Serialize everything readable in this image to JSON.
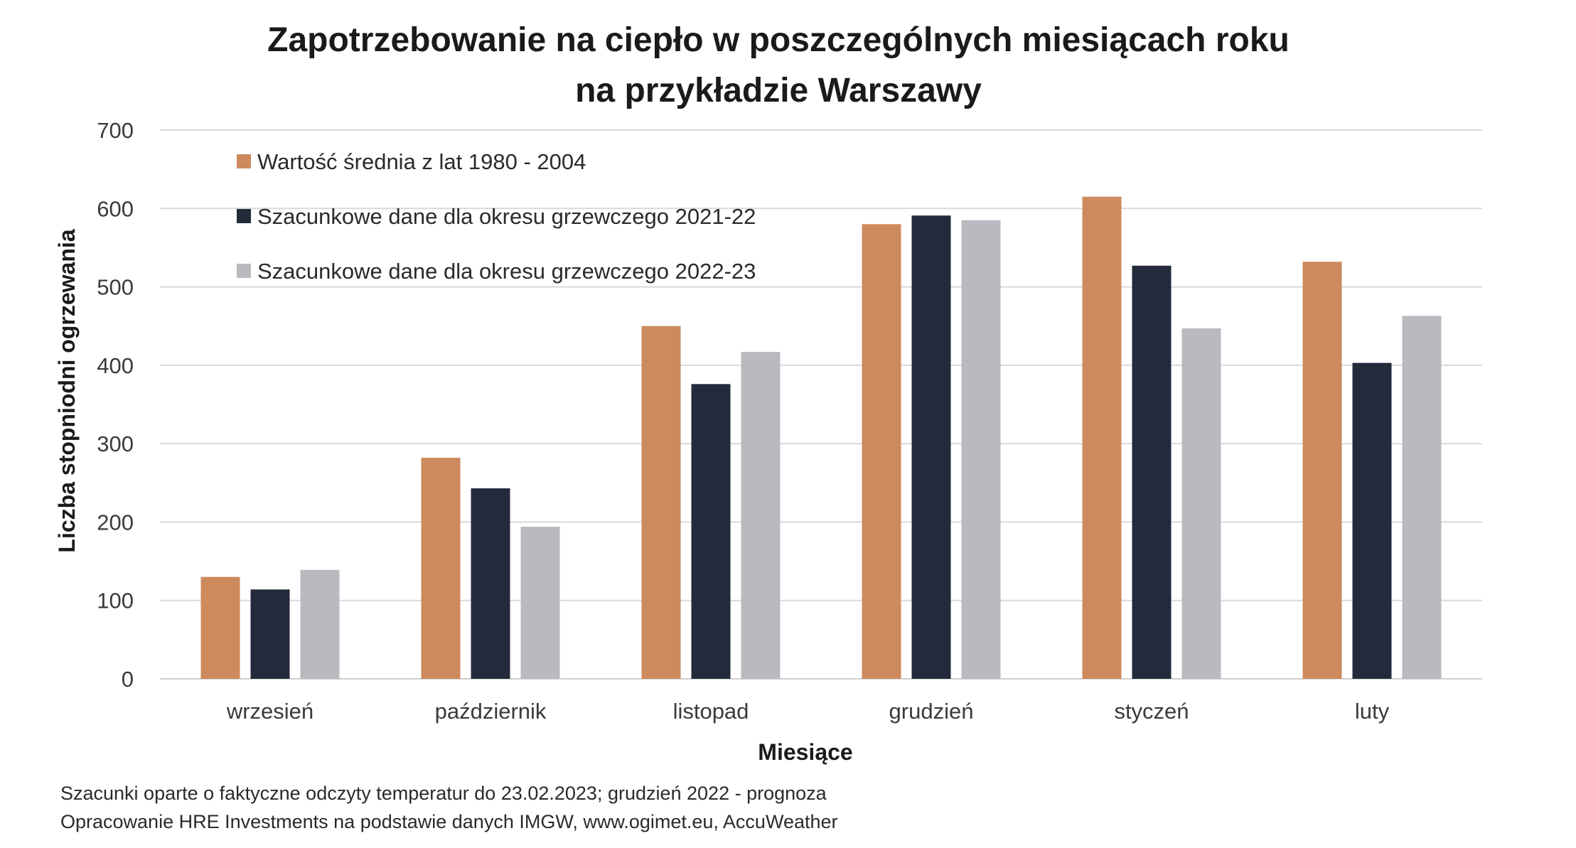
{
  "chart_data": {
    "type": "bar",
    "title": "Zapotrzebowanie na ciepło w poszczególnych miesiącach roku",
    "subtitle": "na przykładzie Warszawy",
    "xlabel": "Miesiące",
    "ylabel": "Liczba stopniodni ogrzewania",
    "ylim": [
      0,
      700
    ],
    "yticks": [
      "0",
      "100",
      "200",
      "300",
      "400",
      "500",
      "600",
      "700"
    ],
    "grid": true,
    "legend_position": "top-left",
    "categories": [
      "wrzesień",
      "październik",
      "listopad",
      "grudzień",
      "styczeń",
      "luty"
    ],
    "series": [
      {
        "name": "Wartość średnia z lat 1980 - 2004",
        "color": "#cd8a5c",
        "values": [
          130,
          282,
          450,
          580,
          615,
          532
        ]
      },
      {
        "name": "Szacunkowe dane dla okresu grzewczego 2021-22",
        "color": "#232a3c",
        "values": [
          114,
          243,
          376,
          591,
          527,
          403
        ]
      },
      {
        "name": "Szacunkowe dane dla okresu grzewczego 2022-23",
        "color": "#bcb8c0",
        "values": [
          139,
          194,
          417,
          585,
          447,
          463
        ]
      }
    ]
  },
  "notes": [
    "Szacunki oparte o faktyczne odczyty temperatur do 23.02.2023; grudzień 2022 - prognoza",
    "Opracowanie HRE Investments na podstawie danych IMGW, www.ogimet.eu, AccuWeather"
  ]
}
